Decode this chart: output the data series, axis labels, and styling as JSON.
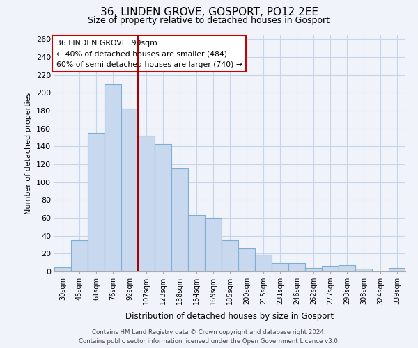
{
  "title": "36, LINDEN GROVE, GOSPORT, PO12 2EE",
  "subtitle": "Size of property relative to detached houses in Gosport",
  "xlabel": "Distribution of detached houses by size in Gosport",
  "ylabel": "Number of detached properties",
  "categories": [
    "30sqm",
    "45sqm",
    "61sqm",
    "76sqm",
    "92sqm",
    "107sqm",
    "123sqm",
    "138sqm",
    "154sqm",
    "169sqm",
    "185sqm",
    "200sqm",
    "215sqm",
    "231sqm",
    "246sqm",
    "262sqm",
    "277sqm",
    "293sqm",
    "308sqm",
    "324sqm",
    "339sqm"
  ],
  "values": [
    5,
    35,
    155,
    210,
    182,
    152,
    143,
    115,
    63,
    60,
    35,
    26,
    19,
    9,
    9,
    4,
    6,
    7,
    3,
    0,
    4
  ],
  "bar_color": "#c8d8ee",
  "bar_edge_color": "#7bafd4",
  "vline_x_index": 4,
  "vline_color": "#aa0000",
  "annotation_title": "36 LINDEN GROVE: 99sqm",
  "annotation_line1": "← 40% of detached houses are smaller (484)",
  "annotation_line2": "60% of semi-detached houses are larger (740) →",
  "annotation_box_color": "#ffffff",
  "annotation_box_edge_color": "#cc0000",
  "ylim": [
    0,
    265
  ],
  "yticks": [
    0,
    20,
    40,
    60,
    80,
    100,
    120,
    140,
    160,
    180,
    200,
    220,
    240,
    260
  ],
  "footer_line1": "Contains HM Land Registry data © Crown copyright and database right 2024.",
  "footer_line2": "Contains public sector information licensed under the Open Government Licence v3.0.",
  "bg_color": "#f0f4fa",
  "grid_color": "#c8d4e8",
  "title_fontsize": 11,
  "subtitle_fontsize": 9
}
